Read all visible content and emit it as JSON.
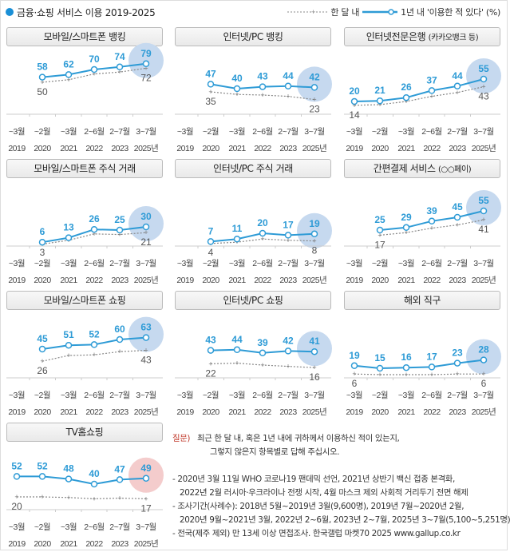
{
  "header": {
    "title": "금융·쇼핑 서비스 이용 2019-2025",
    "legend_month": "한 달 내",
    "legend_year": "1년 내 '이용한 적 있다' (%)"
  },
  "colors": {
    "year_line": "#2e9bd6",
    "month_line": "#888888",
    "highlight": "#c6d9ef",
    "highlight_tv": "#f4cccc"
  },
  "chart_data": {
    "type": "line",
    "categories_month": [
      "~3월",
      "~2월",
      "~3월",
      "2~6월",
      "2~7월",
      "3~7월"
    ],
    "categories_year": [
      "2019",
      "2020",
      "2021",
      "2022",
      "2023",
      "2025년"
    ],
    "unit": "%",
    "panels": [
      {
        "title": "모바일/스마트폰 뱅킹",
        "subtitle": "",
        "year": [
          null,
          58,
          62,
          70,
          74,
          79
        ],
        "month": [
          null,
          50,
          54,
          63,
          66,
          72
        ],
        "month_labels": [
          null,
          50,
          null,
          null,
          null,
          72
        ]
      },
      {
        "title": "인터넷/PC 뱅킹",
        "subtitle": "",
        "year": [
          null,
          47,
          40,
          43,
          44,
          42
        ],
        "month": [
          null,
          35,
          31,
          30,
          28,
          23
        ],
        "month_labels": [
          null,
          35,
          null,
          null,
          null,
          23
        ]
      },
      {
        "title": "인터넷전문은행",
        "subtitle": "(카카오뱅크 등)",
        "year": [
          20,
          21,
          26,
          37,
          44,
          55
        ],
        "month": [
          14,
          15,
          20,
          28,
          34,
          43
        ],
        "month_labels": [
          14,
          null,
          null,
          null,
          null,
          43
        ]
      },
      {
        "title": "모바일/스마트폰 주식 거래",
        "subtitle": "",
        "year": [
          null,
          6,
          13,
          26,
          25,
          30
        ],
        "month": [
          null,
          3,
          9,
          19,
          18,
          21
        ],
        "month_labels": [
          null,
          3,
          null,
          null,
          null,
          21
        ]
      },
      {
        "title": "인터넷/PC 주식 거래",
        "subtitle": "",
        "year": [
          null,
          7,
          11,
          20,
          17,
          19
        ],
        "month": [
          null,
          4,
          6,
          11,
          9,
          8
        ],
        "month_labels": [
          null,
          4,
          null,
          null,
          null,
          8
        ]
      },
      {
        "title": "간편결제 서비스",
        "subtitle": "(○○페이)",
        "year": [
          null,
          25,
          29,
          39,
          45,
          55
        ],
        "month": [
          null,
          17,
          21,
          28,
          33,
          41
        ],
        "month_labels": [
          null,
          17,
          null,
          null,
          null,
          41
        ]
      },
      {
        "title": "모바일/스마트폰 쇼핑",
        "subtitle": "",
        "year": [
          null,
          45,
          51,
          52,
          60,
          63
        ],
        "month": [
          null,
          26,
          35,
          36,
          41,
          43
        ],
        "month_labels": [
          null,
          26,
          null,
          null,
          null,
          43
        ]
      },
      {
        "title": "인터넷/PC 쇼핑",
        "subtitle": "",
        "year": [
          null,
          43,
          44,
          39,
          42,
          41
        ],
        "month": [
          null,
          22,
          23,
          20,
          18,
          16
        ],
        "month_labels": [
          null,
          22,
          null,
          null,
          null,
          16
        ]
      },
      {
        "title": "해외 직구",
        "subtitle": "",
        "year": [
          19,
          15,
          16,
          17,
          23,
          28
        ],
        "month": [
          6,
          5,
          5,
          5,
          6,
          6
        ],
        "month_labels": [
          6,
          null,
          null,
          null,
          null,
          6
        ]
      },
      {
        "title": "TV홈쇼핑",
        "subtitle": "",
        "year": [
          52,
          52,
          48,
          40,
          47,
          49
        ],
        "month": [
          20,
          20,
          19,
          17,
          18,
          17
        ],
        "month_labels": [
          20,
          null,
          null,
          null,
          null,
          17
        ]
      }
    ]
  },
  "notes": {
    "q_label": "질문)",
    "q_line1": "최근 한 달 내, 혹은 1년 내에 귀하께서 이용하신 적이 있는지,",
    "q_line2": "그렇지 않은지 항목별로 답해 주십시오.",
    "n1": "- 2020년 3월 11일 WHO 코로나19 팬데믹 선언, 2021년 상반기 백신 접종 본격화,",
    "n1b": "2022년 2월 러시아·우크라이나 전쟁 시작, 4월 마스크 제외 사회적 거리두기 전면 해제",
    "n2": "- 조사기간(사례수): 2018년 5월~2019년 3월(9,600명), 2019년 7월~2020년 2월,",
    "n2b": "2020년 9월~2021년 3월, 2022년 2~6월, 2023년 2~7월, 2025년 3~7월(5,100~5,251명)",
    "n3": "- 전국(제주 제외) 만 13세 이상 면접조사. 한국갤럽 마켓70 2025 www.gallup.co.kr"
  }
}
